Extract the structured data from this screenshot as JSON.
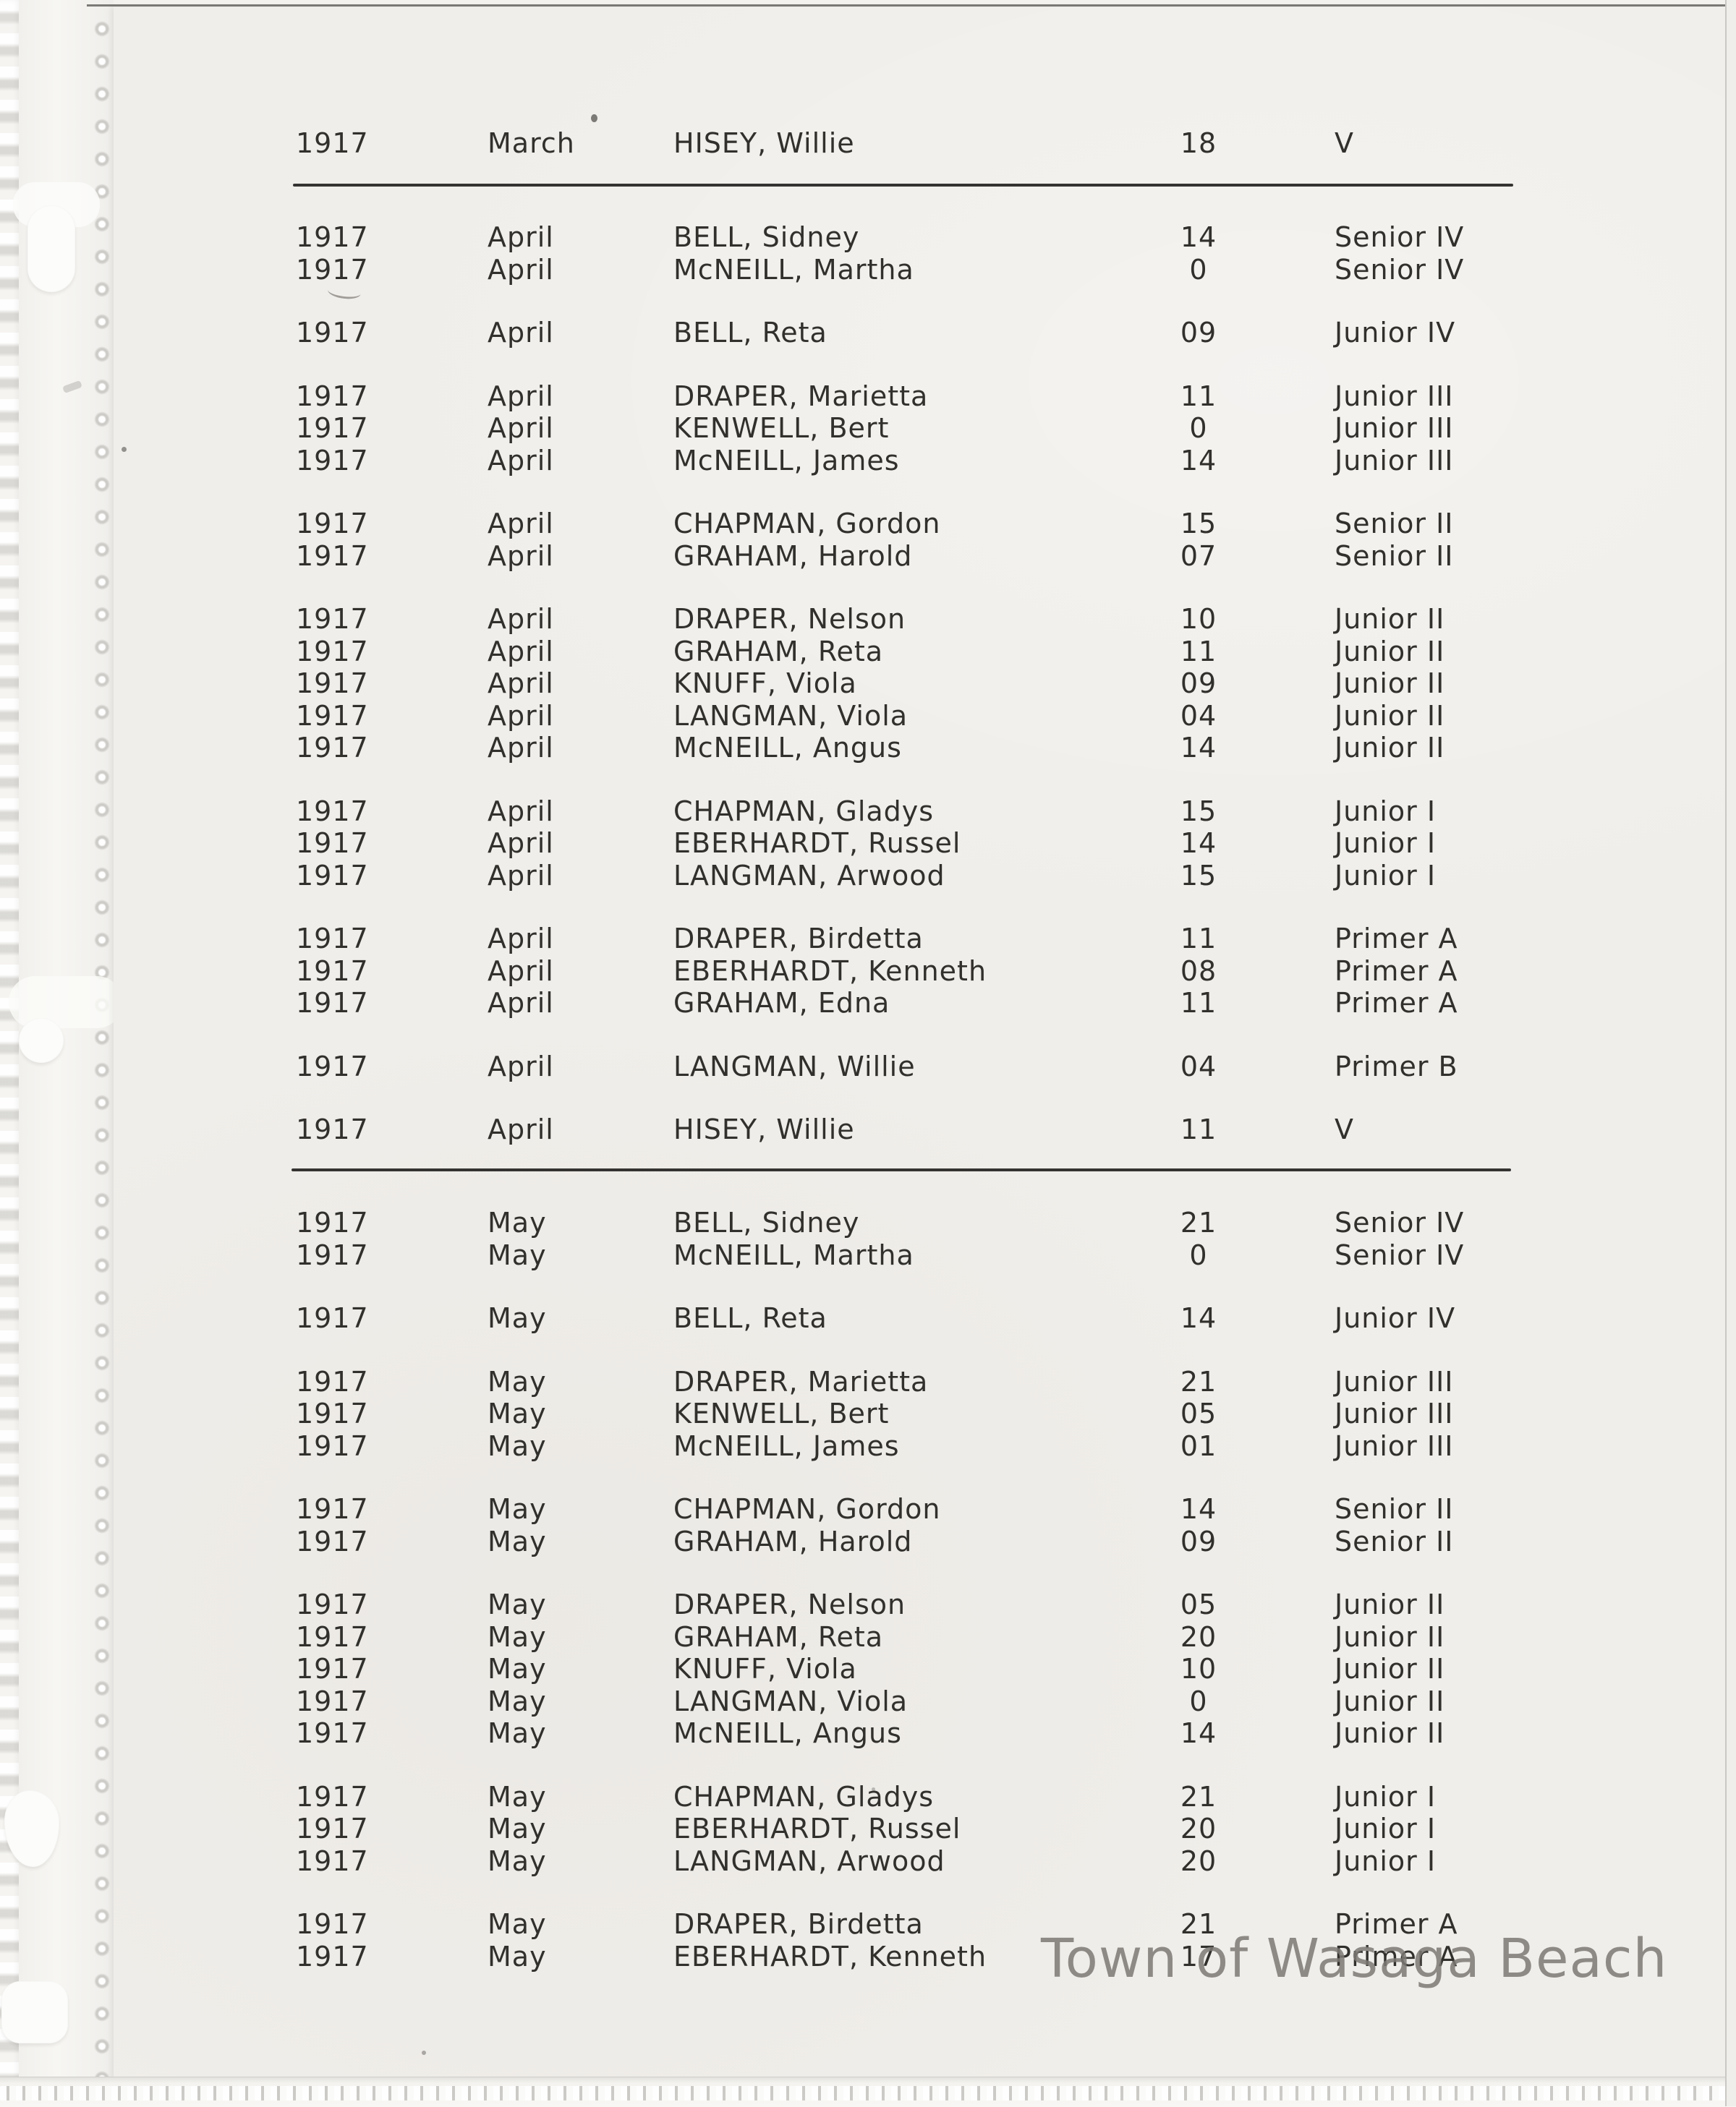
{
  "page": {
    "watermark": "Town of Wasaga Beach"
  },
  "colors": {
    "paper": "#f0eeea",
    "ink": "#32302c",
    "rule": "#343331",
    "watermark": "#7c7975"
  },
  "record_table": {
    "sections": [
      {
        "id": "march",
        "groups": [
          [
            {
              "year": "1917",
              "month": "March",
              "name": "HISEY, Willie",
              "days": "18",
              "grade": "V"
            }
          ]
        ]
      },
      {
        "id": "april",
        "groups": [
          [
            {
              "year": "1917",
              "month": "April",
              "name": "BELL, Sidney",
              "days": "14",
              "grade": "Senior IV"
            },
            {
              "year": "1917",
              "month": "April",
              "name": "McNEILL, Martha",
              "days": "0",
              "grade": "Senior IV"
            }
          ],
          [
            {
              "year": "1917",
              "month": "April",
              "name": "BELL, Reta",
              "days": "09",
              "grade": "Junior IV"
            }
          ],
          [
            {
              "year": "1917",
              "month": "April",
              "name": "DRAPER, Marietta",
              "days": "11",
              "grade": "Junior III"
            },
            {
              "year": "1917",
              "month": "April",
              "name": "KENWELL, Bert",
              "days": "0",
              "grade": "Junior III"
            },
            {
              "year": "1917",
              "month": "April",
              "name": "McNEILL, James",
              "days": "14",
              "grade": "Junior III"
            }
          ],
          [
            {
              "year": "1917",
              "month": "April",
              "name": "CHAPMAN, Gordon",
              "days": "15",
              "grade": "Senior II"
            },
            {
              "year": "1917",
              "month": "April",
              "name": "GRAHAM, Harold",
              "days": "07",
              "grade": "Senior II"
            }
          ],
          [
            {
              "year": "1917",
              "month": "April",
              "name": "DRAPER, Nelson",
              "days": "10",
              "grade": "Junior II"
            },
            {
              "year": "1917",
              "month": "April",
              "name": "GRAHAM, Reta",
              "days": "11",
              "grade": "Junior II"
            },
            {
              "year": "1917",
              "month": "April",
              "name": "KNUFF, Viola",
              "days": "09",
              "grade": "Junior II"
            },
            {
              "year": "1917",
              "month": "April",
              "name": "LANGMAN, Viola",
              "days": "04",
              "grade": "Junior II"
            },
            {
              "year": "1917",
              "month": "April",
              "name": "McNEILL, Angus",
              "days": "14",
              "grade": "Junior II"
            }
          ],
          [
            {
              "year": "1917",
              "month": "April",
              "name": "CHAPMAN, Gladys",
              "days": "15",
              "grade": "Junior I"
            },
            {
              "year": "1917",
              "month": "April",
              "name": "EBERHARDT, Russel",
              "days": "14",
              "grade": "Junior I"
            },
            {
              "year": "1917",
              "month": "April",
              "name": "LANGMAN, Arwood",
              "days": "15",
              "grade": "Junior I"
            }
          ],
          [
            {
              "year": "1917",
              "month": "April",
              "name": "DRAPER, Birdetta",
              "days": "11",
              "grade": "Primer A"
            },
            {
              "year": "1917",
              "month": "April",
              "name": "EBERHARDT, Kenneth",
              "days": "08",
              "grade": "Primer A"
            },
            {
              "year": "1917",
              "month": "April",
              "name": "GRAHAM, Edna",
              "days": "11",
              "grade": "Primer A"
            }
          ],
          [
            {
              "year": "1917",
              "month": "April",
              "name": "LANGMAN, Willie",
              "days": "04",
              "grade": "Primer B"
            }
          ],
          [
            {
              "year": "1917",
              "month": "April",
              "name": "HISEY, Willie",
              "days": "11",
              "grade": "V"
            }
          ]
        ]
      },
      {
        "id": "may",
        "groups": [
          [
            {
              "year": "1917",
              "month": "May",
              "name": "BELL, Sidney",
              "days": "21",
              "grade": "Senior IV"
            },
            {
              "year": "1917",
              "month": "May",
              "name": "McNEILL, Martha",
              "days": "0",
              "grade": "Senior IV"
            }
          ],
          [
            {
              "year": "1917",
              "month": "May",
              "name": "BELL, Reta",
              "days": "14",
              "grade": "Junior IV"
            }
          ],
          [
            {
              "year": "1917",
              "month": "May",
              "name": "DRAPER, Marietta",
              "days": "21",
              "grade": "Junior III"
            },
            {
              "year": "1917",
              "month": "May",
              "name": "KENWELL, Bert",
              "days": "05",
              "grade": "Junior III"
            },
            {
              "year": "1917",
              "month": "May",
              "name": "McNEILL, James",
              "days": "01",
              "grade": "Junior III"
            }
          ],
          [
            {
              "year": "1917",
              "month": "May",
              "name": "CHAPMAN, Gordon",
              "days": "14",
              "grade": "Senior II"
            },
            {
              "year": "1917",
              "month": "May",
              "name": "GRAHAM, Harold",
              "days": "09",
              "grade": "Senior II"
            }
          ],
          [
            {
              "year": "1917",
              "month": "May",
              "name": "DRAPER, Nelson",
              "days": "05",
              "grade": "Junior II"
            },
            {
              "year": "1917",
              "month": "May",
              "name": "GRAHAM, Reta",
              "days": "20",
              "grade": "Junior II"
            },
            {
              "year": "1917",
              "month": "May",
              "name": "KNUFF, Viola",
              "days": "10",
              "grade": "Junior II"
            },
            {
              "year": "1917",
              "month": "May",
              "name": "LANGMAN, Viola",
              "days": "0",
              "grade": "Junior II"
            },
            {
              "year": "1917",
              "month": "May",
              "name": "McNEILL, Angus",
              "days": "14",
              "grade": "Junior II"
            }
          ],
          [
            {
              "year": "1917",
              "month": "May",
              "name": "CHAPMAN, Gladys",
              "days": "21",
              "grade": "Junior I"
            },
            {
              "year": "1917",
              "month": "May",
              "name": "EBERHARDT, Russel",
              "days": "20",
              "grade": "Junior I"
            },
            {
              "year": "1917",
              "month": "May",
              "name": "LANGMAN, Arwood",
              "days": "20",
              "grade": "Junior I"
            }
          ],
          [
            {
              "year": "1917",
              "month": "May",
              "name": "DRAPER, Birdetta",
              "days": "21",
              "grade": "Primer A"
            },
            {
              "year": "1917",
              "month": "May",
              "name": "EBERHARDT, Kenneth",
              "days": "17",
              "grade": "Primer A"
            }
          ]
        ]
      }
    ]
  }
}
